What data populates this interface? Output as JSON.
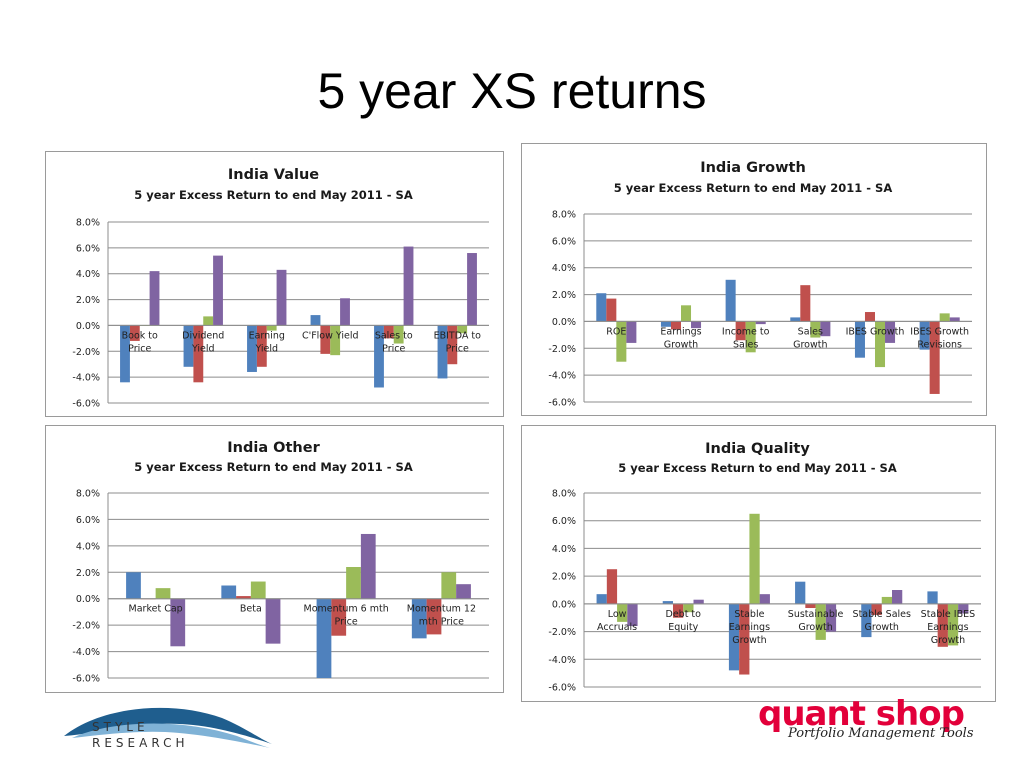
{
  "slide": {
    "title": "5 year XS returns"
  },
  "colors": {
    "series1": "#4f81bd",
    "series2": "#c0504d",
    "series3": "#9bbb59",
    "series4": "#8064a2"
  },
  "logos": {
    "style_research": [
      "STYLE",
      "RESEARCH"
    ],
    "quant_shop": "quant shop",
    "quant_shop_tagline": "Portfolio Management Tools"
  },
  "chart_data": [
    {
      "type": "bar",
      "title": "India Value",
      "subtitle": "5 year Excess Return to end May 2011 - SA",
      "categories": [
        [
          "Book to",
          "Price"
        ],
        [
          "Dividend",
          "Yield"
        ],
        [
          "Earning",
          "Yield"
        ],
        [
          "C'Flow Yield"
        ],
        [
          "Sales to",
          "Price"
        ],
        [
          "EBITDA to",
          "Price"
        ]
      ],
      "series": [
        {
          "values": [
            -4.4,
            -3.2,
            -3.6,
            0.8,
            -4.8,
            -4.1
          ]
        },
        {
          "values": [
            -1.2,
            -4.4,
            -3.2,
            -2.2,
            -1.0,
            -3.0
          ]
        },
        {
          "values": [
            0.0,
            0.7,
            -0.4,
            -2.3,
            -1.4,
            -0.6
          ]
        },
        {
          "values": [
            4.2,
            5.4,
            4.3,
            2.1,
            6.1,
            5.6
          ]
        }
      ],
      "ylim": [
        -6,
        8
      ],
      "yticks": [
        "8.0%",
        "6.0%",
        "4.0%",
        "2.0%",
        "0.0%",
        "-2.0%",
        "-4.0%",
        "-6.0%"
      ],
      "grid": true
    },
    {
      "type": "bar",
      "title": "India Growth",
      "subtitle": "5 year Excess Return to end May 2011 - SA",
      "categories": [
        [
          "ROE"
        ],
        [
          "Earnings",
          "Growth"
        ],
        [
          "Income to",
          "Sales"
        ],
        [
          "Sales",
          "Growth"
        ],
        [
          "IBES Growth"
        ],
        [
          "IBES Growth",
          "Revisions"
        ]
      ],
      "series": [
        {
          "values": [
            2.1,
            -0.4,
            3.1,
            0.3,
            -2.7,
            -2.1
          ]
        },
        {
          "values": [
            1.7,
            -0.6,
            -1.4,
            2.7,
            0.7,
            -5.4
          ]
        },
        {
          "values": [
            -3.0,
            1.2,
            -2.3,
            -1.2,
            -3.4,
            0.6
          ]
        },
        {
          "values": [
            -1.6,
            -0.5,
            -0.2,
            -1.1,
            -1.6,
            0.3
          ]
        }
      ],
      "ylim": [
        -6,
        8
      ],
      "yticks": [
        "8.0%",
        "6.0%",
        "4.0%",
        "2.0%",
        "0.0%",
        "-2.0%",
        "-4.0%",
        "-6.0%"
      ],
      "grid": true
    },
    {
      "type": "bar",
      "title": "India Other",
      "subtitle": "5 year Excess Return to end May 2011 - SA",
      "categories": [
        [
          "Market Cap"
        ],
        [
          "Beta"
        ],
        [
          "Momentum 6 mth",
          "Price"
        ],
        [
          "Momentum 12",
          "mth Price"
        ]
      ],
      "series": [
        {
          "values": [
            2.0,
            1.0,
            -6.0,
            -3.0
          ]
        },
        {
          "values": [
            0.0,
            0.2,
            -2.8,
            -2.7
          ]
        },
        {
          "values": [
            0.8,
            1.3,
            2.4,
            2.0
          ]
        },
        {
          "values": [
            -3.6,
            -3.4,
            4.9,
            1.1
          ]
        }
      ],
      "ylim": [
        -6,
        8
      ],
      "yticks": [
        "8.0%",
        "6.0%",
        "4.0%",
        "2.0%",
        "0.0%",
        "-2.0%",
        "-4.0%",
        "-6.0%"
      ],
      "grid": true
    },
    {
      "type": "bar",
      "title": "India Quality",
      "subtitle": "5 year Excess Return to end May 2011 - SA",
      "categories": [
        [
          "Low",
          "Accruals"
        ],
        [
          "Debt to",
          "Equity"
        ],
        [
          "Stable",
          "Earnings",
          "Growth"
        ],
        [
          "Sustainable",
          "Growth"
        ],
        [
          "Stable Sales",
          "Growth"
        ],
        [
          "Stable IBES",
          "Earnings",
          "Growth"
        ]
      ],
      "series": [
        {
          "values": [
            0.7,
            0.2,
            -4.8,
            1.6,
            -2.4,
            0.9
          ]
        },
        {
          "values": [
            2.5,
            -1.0,
            -5.1,
            -0.3,
            -0.8,
            -3.1
          ]
        },
        {
          "values": [
            -1.3,
            -0.6,
            6.5,
            -2.6,
            0.5,
            -3.0
          ]
        },
        {
          "values": [
            -1.6,
            0.3,
            0.7,
            -2.0,
            1.0,
            -0.7
          ]
        }
      ],
      "ylim": [
        -6,
        8
      ],
      "yticks": [
        "8.0%",
        "6.0%",
        "4.0%",
        "2.0%",
        "0.0%",
        "-2.0%",
        "-4.0%",
        "-6.0%"
      ],
      "grid": true
    }
  ]
}
